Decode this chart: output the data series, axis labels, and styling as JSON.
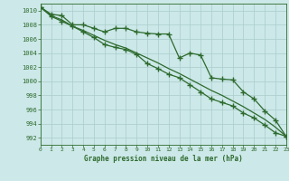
{
  "line_upper": [
    1010.5,
    1009.5,
    1009.3,
    1008.0,
    1008.0,
    1007.5,
    1007.0,
    1007.5,
    1007.5,
    1007.0,
    1006.8,
    1006.7,
    1006.7,
    1003.3,
    1004.0,
    1003.7,
    1000.5,
    1000.3,
    1000.2,
    998.5,
    997.5,
    995.8,
    994.5,
    992.2
  ],
  "line_lower": [
    1010.5,
    1009.2,
    1008.5,
    1007.8,
    1007.0,
    1006.2,
    1005.2,
    1004.8,
    1004.5,
    1003.8,
    1002.5,
    1001.8,
    1001.0,
    1000.5,
    999.5,
    998.5,
    997.5,
    997.0,
    996.5,
    995.5,
    994.8,
    993.8,
    992.7,
    992.2
  ],
  "line_smooth": [
    1010.5,
    1009.3,
    1008.7,
    1007.8,
    1007.2,
    1006.5,
    1005.8,
    1005.2,
    1004.7,
    1004.0,
    1003.3,
    1002.6,
    1001.8,
    1001.1,
    1000.3,
    999.5,
    998.7,
    998.0,
    997.2,
    996.4,
    995.5,
    994.6,
    993.5,
    992.2
  ],
  "x": [
    0,
    1,
    2,
    3,
    4,
    5,
    6,
    7,
    8,
    9,
    10,
    11,
    12,
    13,
    14,
    15,
    16,
    17,
    18,
    19,
    20,
    21,
    22,
    23
  ],
  "ylim": [
    991,
    1011
  ],
  "yticks": [
    992,
    994,
    996,
    998,
    1000,
    1002,
    1004,
    1006,
    1008,
    1010
  ],
  "xlabel": "Graphe pression niveau de la mer (hPa)",
  "line_color": "#2d6a2d",
  "bg_color": "#cce8e8",
  "grid_color": "#aacccc",
  "marker": "+",
  "marker_size": 4,
  "marker_lw": 1.0,
  "line_lw": 0.9
}
